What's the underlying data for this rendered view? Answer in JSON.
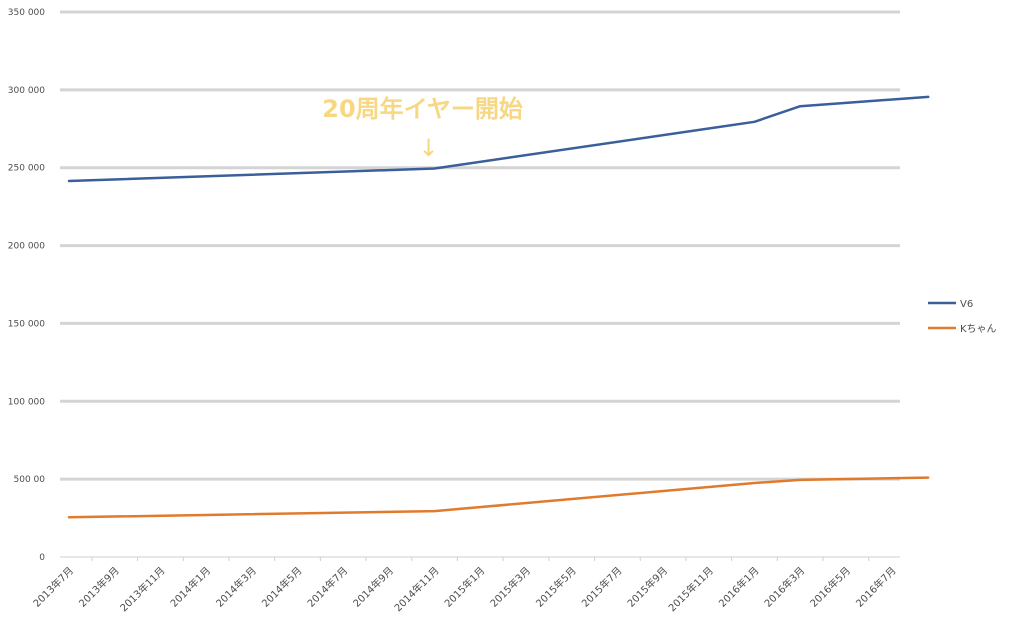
{
  "chart_data": {
    "type": "line",
    "title": "",
    "xlabel": "",
    "ylabel": "",
    "ylim": [
      0,
      350000
    ],
    "y_ticks": [
      0,
      50000,
      100000,
      150000,
      200000,
      250000,
      300000,
      350000
    ],
    "y_tick_labels": [
      "0",
      "500 00",
      "100 000",
      "150 000",
      "200 000",
      "250 000",
      "300 000",
      "350 000"
    ],
    "categories": [
      "2013年7月",
      "2013年9月",
      "2013年11月",
      "2014年1月",
      "2014年3月",
      "2014年5月",
      "2014年7月",
      "2014年9月",
      "2014年11月",
      "2015年1月",
      "2015年3月",
      "2015年5月",
      "2015年7月",
      "2015年9月",
      "2015年11月",
      "2016年1月",
      "2016年3月",
      "2016年5月",
      "2016年7月"
    ],
    "series": [
      {
        "name": "V6",
        "color": "#3a5f9a",
        "x": [
          0,
          8,
          15,
          16,
          18.8
        ],
        "values": [
          241500,
          249500,
          279500,
          289500,
          295500
        ]
      },
      {
        "name": "Kちゃん",
        "color": "#e07b2e",
        "x": [
          0,
          8,
          15,
          16,
          18.8
        ],
        "values": [
          25500,
          29500,
          47500,
          49500,
          51000
        ]
      }
    ],
    "annotations": [
      {
        "text": "20周年イヤー開始",
        "arrow": "↓",
        "category_index": 8,
        "color": "#f7d782"
      }
    ],
    "grid": true,
    "legend": "right"
  }
}
